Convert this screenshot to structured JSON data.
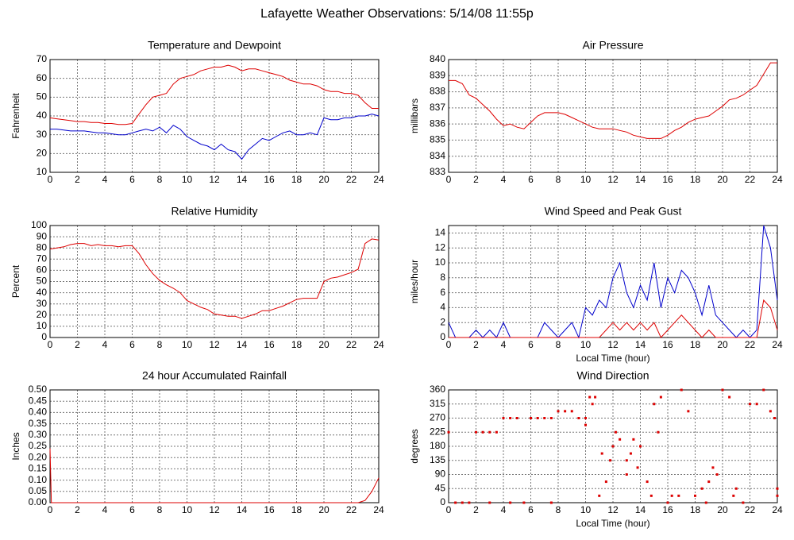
{
  "title": "Lafayette Weather Observations: 5/14/08 11:55p",
  "chart_data": [
    {
      "type": "line",
      "title": "Temperature and Dewpoint",
      "y_label": "Fahrenheit",
      "x": [
        0,
        0.5,
        1,
        1.5,
        2,
        2.5,
        3,
        3.5,
        4,
        4.5,
        5,
        5.5,
        6,
        6.5,
        7,
        7.5,
        8,
        8.5,
        9,
        9.5,
        10,
        10.5,
        11,
        11.5,
        12,
        12.5,
        13,
        13.5,
        14,
        14.5,
        15,
        15.5,
        16,
        16.5,
        17,
        17.5,
        18,
        18.5,
        19,
        19.5,
        20,
        20.5,
        21,
        21.5,
        22,
        22.5,
        23,
        23.5,
        24
      ],
      "series": [
        {
          "color": "#dd0000",
          "values": [
            39,
            38.5,
            38,
            37.5,
            37,
            37,
            36.5,
            36.5,
            36,
            36,
            35.5,
            35.5,
            36,
            41,
            46,
            50,
            51,
            52,
            57,
            60,
            61,
            62,
            64,
            65,
            66,
            66,
            67,
            66,
            64,
            65,
            65,
            64,
            63,
            62,
            61,
            59,
            58,
            57,
            57,
            56,
            54,
            53,
            53,
            52,
            52,
            51,
            47,
            44,
            44
          ]
        },
        {
          "color": "#0000cc",
          "values": [
            33,
            33,
            32.5,
            32,
            32,
            32,
            31.5,
            31,
            31,
            30.5,
            30,
            30,
            31,
            32,
            33,
            32,
            34,
            31,
            35,
            33,
            29,
            27,
            25,
            24,
            22,
            25,
            22,
            21,
            17,
            22,
            25,
            28,
            27,
            29,
            31,
            32,
            30,
            30,
            31,
            30,
            39,
            38,
            38,
            39,
            39,
            40,
            40,
            41,
            40
          ]
        }
      ],
      "xlim": [
        0,
        24
      ],
      "xticks": [
        0,
        2,
        4,
        6,
        8,
        10,
        12,
        14,
        16,
        18,
        20,
        22,
        24
      ],
      "ylim": [
        10,
        70
      ],
      "yticks": [
        10,
        20,
        30,
        40,
        50,
        60,
        70
      ],
      "grid": true
    },
    {
      "type": "line",
      "title": "Air Pressure",
      "y_label": "millibars",
      "x": [
        0,
        0.5,
        1,
        1.5,
        2,
        2.5,
        3,
        3.5,
        4,
        4.5,
        5,
        5.5,
        6,
        6.5,
        7,
        7.5,
        8,
        8.5,
        9,
        9.5,
        10,
        10.5,
        11,
        11.5,
        12,
        12.5,
        13,
        13.5,
        14,
        14.5,
        15,
        15.5,
        16,
        16.5,
        17,
        17.5,
        18,
        18.5,
        19,
        19.5,
        20,
        20.5,
        21,
        21.5,
        22,
        22.5,
        23,
        23.5,
        24
      ],
      "series": [
        {
          "color": "#dd0000",
          "values": [
            838.7,
            838.7,
            838.5,
            837.8,
            837.6,
            837.2,
            836.8,
            836.3,
            835.9,
            836,
            835.8,
            835.7,
            836.1,
            836.5,
            836.7,
            836.7,
            836.7,
            836.6,
            836.4,
            836.2,
            836,
            835.8,
            835.7,
            835.7,
            835.7,
            835.6,
            835.5,
            835.3,
            835.2,
            835.1,
            835.1,
            835.1,
            835.3,
            835.6,
            835.8,
            836.1,
            836.3,
            836.4,
            836.5,
            836.8,
            837.1,
            837.5,
            837.6,
            837.8,
            838.1,
            838.4,
            839.1,
            839.8,
            839.8
          ]
        }
      ],
      "xlim": [
        0,
        24
      ],
      "xticks": [
        0,
        2,
        4,
        6,
        8,
        10,
        12,
        14,
        16,
        18,
        20,
        22,
        24
      ],
      "ylim": [
        833,
        840
      ],
      "yticks": [
        833,
        834,
        835,
        836,
        837,
        838,
        839,
        840
      ],
      "grid": true
    },
    {
      "type": "line",
      "title": "Relative Humidity",
      "y_label": "Percent",
      "x": [
        0,
        0.5,
        1,
        1.5,
        2,
        2.5,
        3,
        3.5,
        4,
        4.5,
        5,
        5.5,
        6,
        6.5,
        7,
        7.5,
        8,
        8.5,
        9,
        9.5,
        10,
        10.5,
        11,
        11.5,
        12,
        12.5,
        13,
        13.5,
        14,
        14.5,
        15,
        15.5,
        16,
        16.5,
        17,
        17.5,
        18,
        18.5,
        19,
        19.5,
        20,
        20.5,
        21,
        21.5,
        22,
        22.5,
        23,
        23.5,
        24
      ],
      "series": [
        {
          "color": "#dd0000",
          "values": [
            79,
            80,
            81,
            83,
            84,
            84,
            82,
            83,
            82,
            82,
            81,
            82,
            82,
            75,
            65,
            57,
            51,
            47,
            44,
            40,
            33,
            30,
            27,
            25,
            21,
            20,
            19,
            19,
            17,
            19,
            21,
            24,
            24,
            26,
            28,
            31,
            34,
            35,
            35,
            35,
            50,
            53,
            54,
            56,
            58,
            61,
            84,
            88,
            87
          ]
        }
      ],
      "xlim": [
        0,
        24
      ],
      "xticks": [
        0,
        2,
        4,
        6,
        8,
        10,
        12,
        14,
        16,
        18,
        20,
        22,
        24
      ],
      "ylim": [
        0,
        100
      ],
      "yticks": [
        0,
        10,
        20,
        30,
        40,
        50,
        60,
        70,
        80,
        90,
        100
      ],
      "grid": true
    },
    {
      "type": "line",
      "title": "Wind Speed and Peak Gust",
      "y_label": "miles/hour",
      "x_label": "Local Time (hour)",
      "x": [
        0,
        0.5,
        1,
        1.5,
        2,
        2.5,
        3,
        3.5,
        4,
        4.5,
        5,
        5.5,
        6,
        6.5,
        7,
        7.5,
        8,
        8.5,
        9,
        9.5,
        10,
        10.5,
        11,
        11.5,
        12,
        12.5,
        13,
        13.5,
        14,
        14.5,
        15,
        15.5,
        16,
        16.5,
        17,
        17.5,
        18,
        18.5,
        19,
        19.5,
        20,
        20.5,
        21,
        21.5,
        22,
        22.5,
        23,
        23.5,
        24
      ],
      "series": [
        {
          "color": "#0000cc",
          "values": [
            2,
            0,
            0,
            0,
            1,
            0,
            1,
            0,
            2,
            0,
            0,
            0,
            0,
            0,
            2,
            1,
            0,
            1,
            2,
            0,
            4,
            3,
            5,
            4,
            8,
            10,
            6,
            4,
            7,
            5,
            10,
            4,
            8,
            6,
            9,
            8,
            6,
            3,
            7,
            3,
            2,
            1,
            0,
            1,
            0,
            1,
            15,
            12,
            5
          ]
        },
        {
          "color": "#dd0000",
          "values": [
            0,
            0,
            0,
            0,
            0,
            0,
            0,
            0,
            0,
            0,
            0,
            0,
            0,
            0,
            0,
            0,
            0,
            0,
            0,
            0,
            0,
            0,
            0,
            1,
            2,
            1,
            2,
            1,
            2,
            1,
            2,
            0,
            1,
            2,
            3,
            2,
            1,
            0,
            1,
            0,
            0,
            0,
            0,
            0,
            0,
            0,
            5,
            4,
            1
          ]
        }
      ],
      "xlim": [
        0,
        24
      ],
      "xticks": [
        0,
        2,
        4,
        6,
        8,
        10,
        12,
        14,
        16,
        18,
        20,
        22,
        24
      ],
      "ylim": [
        0,
        15
      ],
      "yticks": [
        0,
        2,
        4,
        6,
        8,
        10,
        12,
        14
      ],
      "grid": true
    },
    {
      "type": "line",
      "title": "24 hour Accumulated Rainfall",
      "y_label": "Inches",
      "x": [
        0,
        0.1,
        22.5,
        23,
        23.5,
        24
      ],
      "series": [
        {
          "color": "#dd0000",
          "values": [
            0.24,
            0,
            0,
            0.01,
            0.05,
            0.11
          ]
        }
      ],
      "xlim": [
        0,
        24
      ],
      "xticks": [
        0,
        2,
        4,
        6,
        8,
        10,
        12,
        14,
        16,
        18,
        20,
        22,
        24
      ],
      "ylim": [
        0,
        0.5
      ],
      "yticks": [
        {
          "value": 0,
          "label": "0.00"
        },
        {
          "value": 0.05,
          "label": "0.05"
        },
        {
          "value": 0.1,
          "label": "0.10"
        },
        {
          "value": 0.15,
          "label": "0.15"
        },
        {
          "value": 0.2,
          "label": "0.20"
        },
        {
          "value": 0.25,
          "label": "0.25"
        },
        {
          "value": 0.3,
          "label": "0.30"
        },
        {
          "value": 0.35,
          "label": "0.35"
        },
        {
          "value": 0.4,
          "label": "0.40"
        },
        {
          "value": 0.45,
          "label": "0.45"
        },
        {
          "value": 0.5,
          "label": "0.50"
        }
      ],
      "grid": true
    },
    {
      "type": "scatter",
      "title": "Wind Direction",
      "y_label": "degrees",
      "x_label": "Local Time (hour)",
      "color": "#dd0000",
      "x": [
        0,
        0.5,
        1,
        1.5,
        2,
        2.5,
        3,
        3.5,
        3,
        4,
        4.5,
        5,
        4.5,
        5.5,
        6,
        6.5,
        7,
        7.5,
        7.5,
        8,
        8.5,
        9,
        9.5,
        10,
        10,
        10.3,
        10.7,
        10.5,
        11,
        11.2,
        11.5,
        11.8,
        12,
        12.2,
        12.5,
        13,
        13,
        13.3,
        13.5,
        13.8,
        14,
        14.5,
        14.8,
        15,
        15.3,
        15.5,
        16,
        16.3,
        16.8,
        17,
        17.5,
        18,
        18.5,
        18.8,
        19,
        19.3,
        19.6,
        20,
        20.5,
        20.8,
        21,
        21.5,
        22,
        22.5,
        23,
        23.5,
        23.8,
        24,
        24
      ],
      "values": [
        225,
        0,
        0,
        0,
        225,
        225,
        225,
        225,
        0,
        270,
        270,
        270,
        0,
        0,
        270,
        270,
        270,
        270,
        0,
        292,
        292,
        292,
        270,
        270,
        248,
        337,
        337,
        315,
        22,
        157,
        67,
        135,
        180,
        225,
        202,
        90,
        135,
        157,
        202,
        112,
        180,
        67,
        22,
        315,
        225,
        337,
        0,
        22,
        22,
        360,
        292,
        22,
        45,
        0,
        67,
        112,
        90,
        360,
        337,
        22,
        45,
        0,
        315,
        315,
        360,
        292,
        270,
        45,
        22
      ],
      "xlim": [
        0,
        24
      ],
      "xticks": [
        0,
        2,
        4,
        6,
        8,
        10,
        12,
        14,
        16,
        18,
        20,
        22,
        24
      ],
      "ylim": [
        0,
        360
      ],
      "yticks": [
        0,
        45,
        90,
        135,
        180,
        225,
        270,
        315,
        360
      ],
      "grid": true
    }
  ]
}
